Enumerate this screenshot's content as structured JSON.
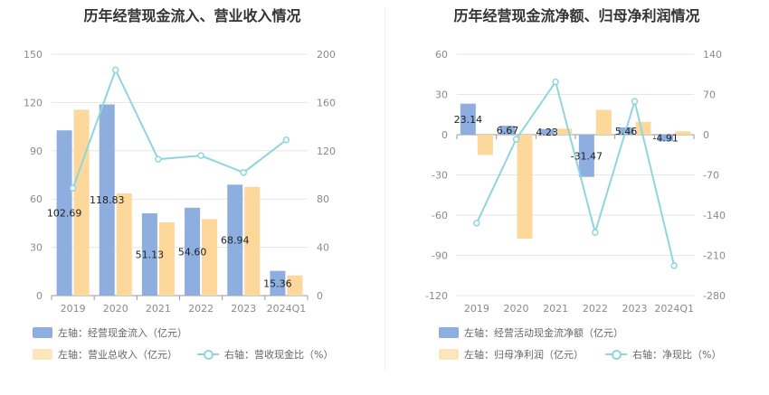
{
  "colors": {
    "bar1": "#8eaedf",
    "bar2": "#fdd89a",
    "line": "#8fd6dc",
    "grid": "#e6e6e6",
    "axis": "#cccccc"
  },
  "left_chart": {
    "title": "历年经营现金流入、营业收入情况",
    "legend": {
      "bar1": "左轴：经营现金流入（亿元）",
      "bar2": "左轴：营业总收入（亿元）",
      "line": "右轴：营收现金比（%）"
    },
    "left_ticks": [
      "0",
      "30",
      "60",
      "90",
      "120",
      "150"
    ],
    "right_ticks": [
      "0",
      "40",
      "80",
      "120",
      "160",
      "200"
    ]
  },
  "right_chart": {
    "title": "历年经营现金流净额、归母净利润情况",
    "legend": {
      "bar1": "左轴：经营活动现金流净额（亿元）",
      "bar2": "左轴：归母净利润（亿元）",
      "line": "右轴：净现比（%）"
    },
    "left_ticks": [
      "-120",
      "-90",
      "-60",
      "-30",
      "0",
      "30",
      "60"
    ],
    "right_ticks": [
      "-280",
      "-210",
      "-140",
      "-70",
      "0",
      "70",
      "140"
    ]
  },
  "chart_data": [
    {
      "type": "bar",
      "title": "历年经营现金流入、营业收入情况",
      "categories": [
        "2019",
        "2020",
        "2021",
        "2022",
        "2023",
        "2024Q1"
      ],
      "ylim": [
        0,
        150
      ],
      "y2lim": [
        0,
        200
      ],
      "series": [
        {
          "name": "左轴：经营现金流入（亿元）",
          "axis": "left",
          "values": [
            102.69,
            118.83,
            51.13,
            54.6,
            68.94,
            15.36
          ],
          "labels": [
            "102.69",
            "118.83",
            "51.13",
            "54.60",
            "68.94",
            "15.36"
          ]
        },
        {
          "name": "左轴：营业总收入（亿元）",
          "axis": "left",
          "values": [
            115.5,
            63.5,
            45.5,
            47.5,
            67.5,
            12.5
          ]
        },
        {
          "name": "右轴：营收现金比（%）",
          "axis": "right",
          "type": "line",
          "values": [
            89,
            187,
            113,
            116,
            102,
            129
          ]
        }
      ]
    },
    {
      "type": "bar",
      "title": "历年经营现金流净额、归母净利润情况",
      "categories": [
        "2019",
        "2020",
        "2021",
        "2022",
        "2023",
        "2024Q1"
      ],
      "ylim": [
        -120,
        60
      ],
      "y2lim": [
        -280,
        140
      ],
      "series": [
        {
          "name": "左轴：经营活动现金流净额（亿元）",
          "axis": "left",
          "values": [
            23.14,
            6.67,
            4.23,
            -31.47,
            5.46,
            -4.91
          ],
          "labels": [
            "23.14",
            "6.67",
            "4.23",
            "-31.47",
            "5.46",
            "-4.91"
          ]
        },
        {
          "name": "左轴：归母净利润（亿元）",
          "axis": "left",
          "values": [
            -15,
            -77.5,
            4.5,
            18.5,
            9.5,
            2.5
          ]
        },
        {
          "name": "右轴：净现比（%）",
          "axis": "right",
          "type": "line",
          "values": [
            -154,
            -8,
            92,
            -170,
            58,
            -228
          ]
        }
      ]
    }
  ]
}
